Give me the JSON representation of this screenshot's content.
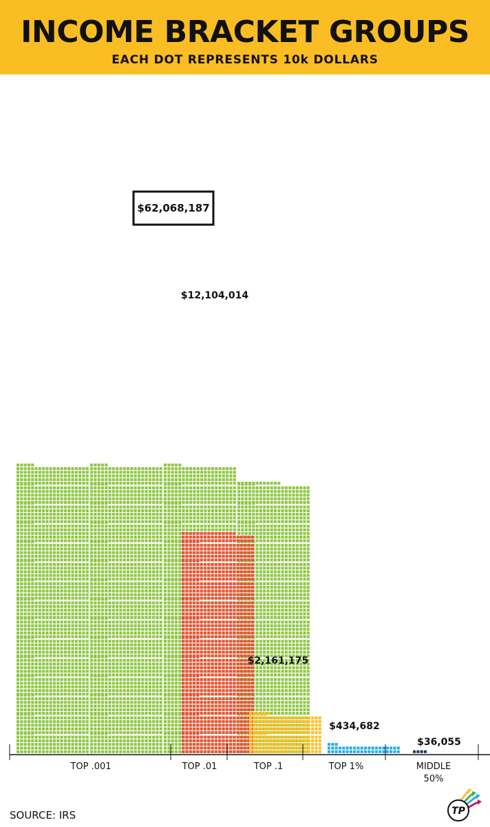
{
  "header": {
    "title": "INCOME BRACKET GROUPS",
    "subtitle": "EACH DOT REPRESENTS 10k DOLLARS"
  },
  "source": "SOURCE: IRS",
  "logo_text": "TP",
  "colors": {
    "header_bg": "#fbbd24",
    "top_001": "#8cc63f",
    "top_01": "#ef4d3c",
    "top_1": "#fbbf24",
    "top_1pct": "#22aee8",
    "middle_50": "#1f3a6b"
  },
  "chart_data": {
    "type": "bar",
    "style": "dot-matrix (unit) chart",
    "title": "INCOME BRACKET GROUPS",
    "subtitle": "EACH DOT REPRESENTS 10k DOLLARS",
    "dot_value": 10000,
    "xlabel": "",
    "ylabel": "",
    "categories": [
      "TOP .001",
      "TOP .01",
      "TOP .1",
      "TOP 1%",
      "MIDDLE 50%"
    ],
    "values": [
      62068187,
      12104014,
      2161175,
      434682,
      36055
    ],
    "value_labels": [
      "$62,068,187",
      "$12,104,014",
      "$2,161,175",
      "$434,682",
      "$36,055"
    ],
    "category_label_lines": [
      [
        "TOP .001"
      ],
      [
        "TOP .01"
      ],
      [
        "TOP .1"
      ],
      [
        "TOP 1%"
      ],
      [
        "MIDDLE",
        "50%"
      ]
    ],
    "grid": false,
    "legend": "none"
  }
}
